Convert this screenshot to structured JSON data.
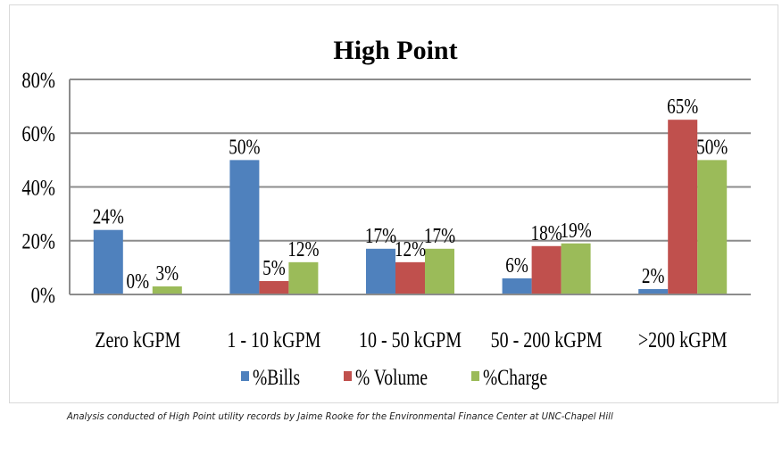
{
  "chart_data": {
    "type": "bar",
    "title": "High Point",
    "xlabel": "",
    "ylabel": "",
    "ylim": [
      0,
      80
    ],
    "yticks": [
      0,
      20,
      40,
      60,
      80
    ],
    "ytick_labels": [
      "0%",
      "20%",
      "40%",
      "60%",
      "80%"
    ],
    "grid": true,
    "legend_position": "bottom",
    "categories": [
      "Zero kGPM",
      "1 - 10 kGPM",
      "10 - 50 kGPM",
      "50 - 200 kGPM",
      ">200 kGPM"
    ],
    "series": [
      {
        "name": "%Bills",
        "color": "#4f81bd",
        "values": [
          24,
          50,
          17,
          6,
          2
        ],
        "labels": [
          "24%",
          "50%",
          "17%",
          "6%",
          "2%"
        ]
      },
      {
        "name": "% Volume",
        "color": "#c0504d",
        "values": [
          0,
          5,
          12,
          18,
          65
        ],
        "labels": [
          "0%",
          "5%",
          "12%",
          "18%",
          "65%"
        ]
      },
      {
        "name": "%Charge",
        "color": "#9bbb59",
        "values": [
          3,
          12,
          17,
          19,
          50
        ],
        "labels": [
          "3%",
          "12%",
          "17%",
          "19%",
          "50%"
        ]
      }
    ]
  },
  "caption": "Analysis conducted of High Point utility records by Jaime Rooke for the Environmental Finance Center at UNC-Chapel Hill"
}
